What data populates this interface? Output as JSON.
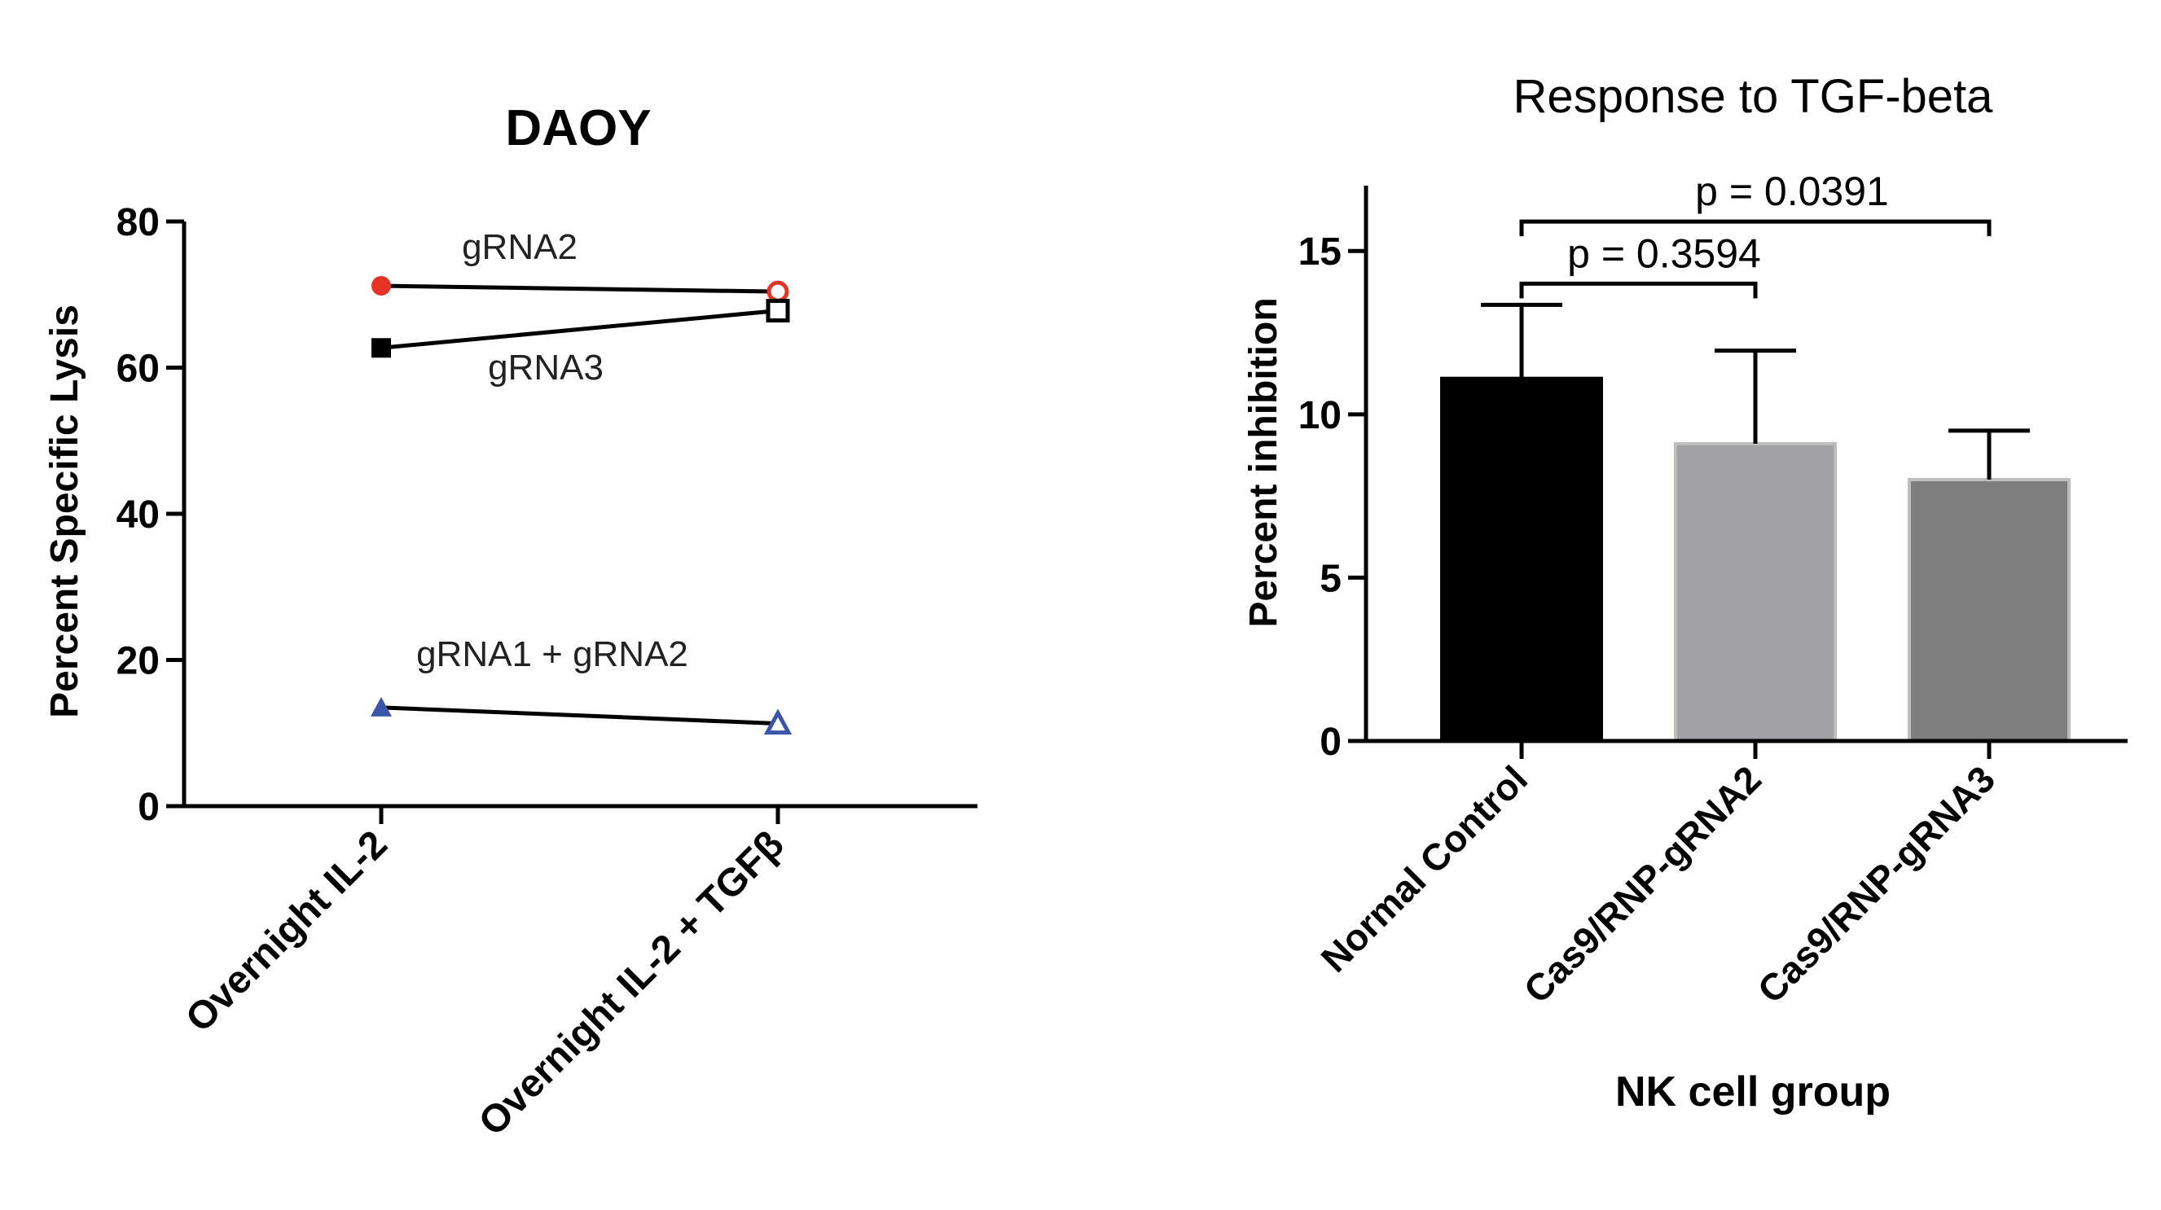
{
  "chart_data": [
    {
      "type": "line",
      "title": "DAOY",
      "ylabel": "Percent Specific Lysis",
      "xlabel": "",
      "ylim": [
        0,
        80
      ],
      "yticks": [
        0,
        20,
        40,
        60,
        80
      ],
      "categories": [
        "Overnight IL-2",
        "Overnight IL-2 + TGFβ"
      ],
      "grid": false,
      "series": [
        {
          "name": "gRNA2",
          "values": [
            71.2,
            70.4
          ],
          "color": "#e53325",
          "marker": "circle"
        },
        {
          "name": "gRNA3",
          "values": [
            62.7,
            67.8
          ],
          "color": "#000000",
          "marker": "square"
        },
        {
          "name": "gRNA1 + gRNA2",
          "values": [
            13.5,
            11.3
          ],
          "color": "#3a56a8",
          "marker": "triangle"
        }
      ]
    },
    {
      "type": "bar",
      "title": "Response to TGF-beta",
      "xlabel": "NK cell group",
      "ylabel": "Percent inhibition",
      "ylim": [
        0,
        17
      ],
      "yticks": [
        0,
        5,
        10,
        15
      ],
      "categories": [
        "Normal Control",
        "Cas9/RNP-gRNA2",
        "Cas9/RNP-gRNA3"
      ],
      "values": [
        11.1,
        9.1,
        8.0
      ],
      "error_upper": [
        13.35,
        11.95,
        9.5
      ],
      "colors": [
        "#000000",
        "#a2a1a6",
        "#7e7e7e"
      ],
      "grid": false,
      "annotations": [
        {
          "text": "p = 0.3594",
          "from": 0,
          "to": 1,
          "level": 14.0
        },
        {
          "text": "p = 0.0391",
          "from": 0,
          "to": 2,
          "level": 15.9
        }
      ]
    }
  ]
}
